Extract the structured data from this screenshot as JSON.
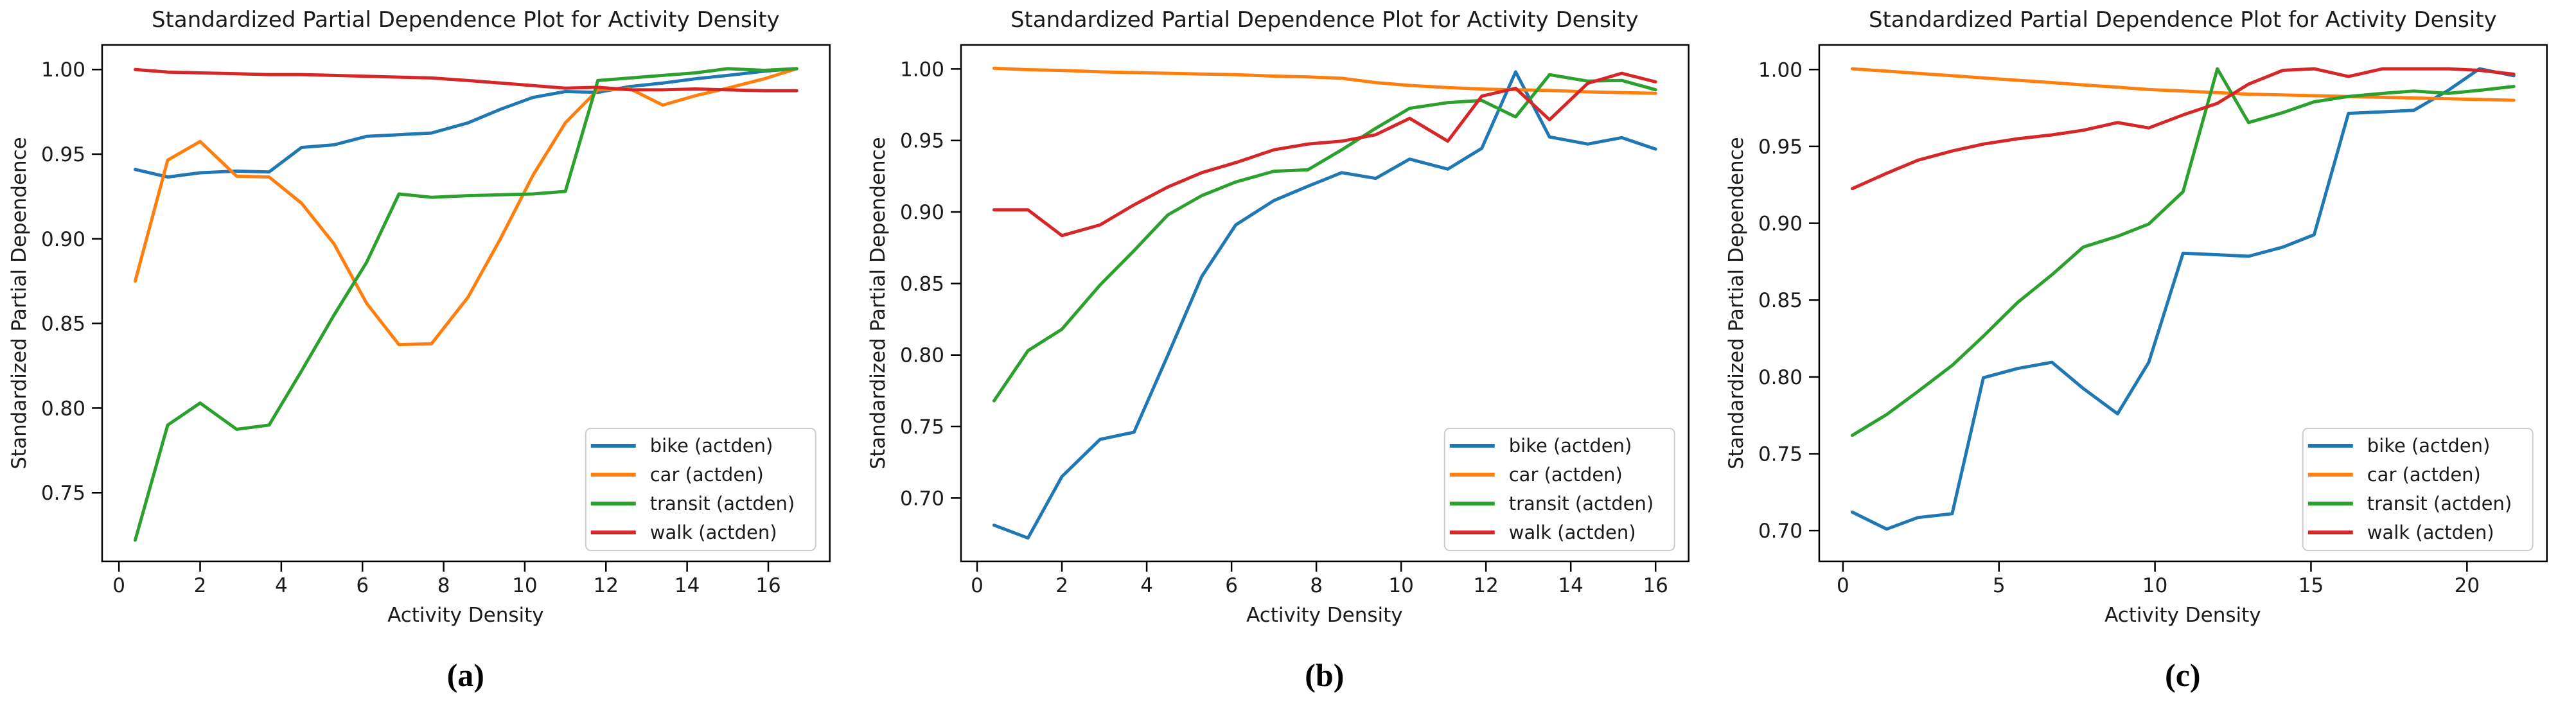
{
  "figure": {
    "background": "#ffffff",
    "text_color": "#1a1a1a",
    "spine_color": "#000000"
  },
  "chart_data": [
    {
      "type": "line",
      "caption": "(a)",
      "title": "Standardized Partial Dependence Plot for Activity Density",
      "xlabel": "Activity Density",
      "ylabel": "Standardized Partial Dependence",
      "xlim": [
        -0.415,
        17.515
      ],
      "ylim": [
        0.7095,
        1.0145
      ],
      "xticks": [
        0,
        2,
        4,
        6,
        8,
        10,
        12,
        14,
        16
      ],
      "yticks": [
        0.75,
        0.8,
        0.85,
        0.9,
        0.95,
        1.0
      ],
      "grid": false,
      "legend_position": "lower right",
      "x": [
        0.4,
        1.2,
        2.0,
        2.9,
        3.7,
        4.5,
        5.3,
        6.1,
        6.9,
        7.7,
        8.6,
        9.4,
        10.2,
        11.0,
        11.8,
        12.6,
        13.4,
        14.2,
        15.0,
        15.9,
        16.7
      ],
      "series": [
        {
          "key": "bike",
          "label": "bike (actden)",
          "color": "#1f77b4",
          "y": [
            0.941,
            0.9365,
            0.939,
            0.94,
            0.9395,
            0.954,
            0.9555,
            0.9605,
            0.9615,
            0.9625,
            0.9685,
            0.9765,
            0.9835,
            0.987,
            0.9865,
            0.99,
            0.992,
            0.9945,
            0.9965,
            0.999,
            1.0005
          ]
        },
        {
          "key": "car",
          "label": "car (actden)",
          "color": "#ff7f0e",
          "y": [
            0.875,
            0.9465,
            0.9575,
            0.937,
            0.9365,
            0.921,
            0.897,
            0.862,
            0.8375,
            0.838,
            0.8655,
            0.9,
            0.9375,
            0.9685,
            0.988,
            0.9885,
            0.979,
            0.9845,
            0.989,
            0.9945,
            1.0005
          ]
        },
        {
          "key": "transit",
          "label": "transit (actden)",
          "color": "#2ca02c",
          "y": [
            0.722,
            0.79,
            0.803,
            0.7875,
            0.79,
            0.822,
            0.855,
            0.886,
            0.9265,
            0.9245,
            0.9255,
            0.926,
            0.9265,
            0.928,
            0.9935,
            0.995,
            0.9965,
            0.998,
            1.0005,
            0.9995,
            1.0005
          ]
        },
        {
          "key": "walk",
          "label": "walk (actden)",
          "color": "#d62728",
          "y": [
            1.0,
            0.9985,
            0.998,
            0.9975,
            0.997,
            0.997,
            0.9965,
            0.996,
            0.9955,
            0.995,
            0.9935,
            0.992,
            0.9905,
            0.989,
            0.9895,
            0.988,
            0.988,
            0.9885,
            0.988,
            0.9875,
            0.9875
          ]
        }
      ]
    },
    {
      "type": "line",
      "caption": "(b)",
      "title": "Standardized Partial Dependence Plot for Activity Density",
      "xlabel": "Activity Density",
      "ylabel": "Standardized Partial Dependence",
      "xlim": [
        -0.38,
        16.78
      ],
      "ylim": [
        0.6557,
        1.0168
      ],
      "xticks": [
        0,
        2,
        4,
        6,
        8,
        10,
        12,
        14,
        16
      ],
      "yticks": [
        0.7,
        0.75,
        0.8,
        0.85,
        0.9,
        0.95,
        1.0
      ],
      "grid": false,
      "legend_position": "lower right",
      "x": [
        0.4,
        1.2,
        2.0,
        2.9,
        3.7,
        4.5,
        5.3,
        6.1,
        7.0,
        7.8,
        8.6,
        9.4,
        10.2,
        11.1,
        11.9,
        12.7,
        13.5,
        14.4,
        15.2,
        16.0
      ],
      "series": [
        {
          "key": "bike",
          "label": "bike (actden)",
          "color": "#1f77b4",
          "y": [
            0.681,
            0.672,
            0.715,
            0.741,
            0.746,
            0.8,
            0.855,
            0.891,
            0.908,
            0.918,
            0.9275,
            0.9235,
            0.937,
            0.93,
            0.9445,
            0.998,
            0.9525,
            0.9475,
            0.952,
            0.944
          ]
        },
        {
          "key": "car",
          "label": "car (actden)",
          "color": "#ff7f0e",
          "y": [
            1.0005,
            0.9995,
            0.999,
            0.998,
            0.9975,
            0.997,
            0.9965,
            0.996,
            0.995,
            0.9945,
            0.9935,
            0.9905,
            0.9885,
            0.987,
            0.986,
            0.9855,
            0.985,
            0.984,
            0.9835,
            0.983
          ]
        },
        {
          "key": "transit",
          "label": "transit (actden)",
          "color": "#2ca02c",
          "y": [
            0.768,
            0.803,
            0.818,
            0.849,
            0.873,
            0.898,
            0.9115,
            0.921,
            0.9285,
            0.9295,
            0.9435,
            0.9585,
            0.9725,
            0.9765,
            0.978,
            0.9665,
            0.996,
            0.9915,
            0.992,
            0.9855
          ]
        },
        {
          "key": "walk",
          "label": "walk (actden)",
          "color": "#d62728",
          "y": [
            0.9015,
            0.9015,
            0.8835,
            0.891,
            0.905,
            0.9175,
            0.9275,
            0.9345,
            0.9435,
            0.9475,
            0.9495,
            0.954,
            0.9655,
            0.9495,
            0.981,
            0.9865,
            0.9645,
            0.99,
            0.997,
            0.991
          ]
        }
      ]
    },
    {
      "type": "line",
      "caption": "(c)",
      "title": "Standardized Partial Dependence Plot for Activity Density",
      "xlabel": "Activity Density",
      "ylabel": "Standardized Partial Dependence",
      "xlim": [
        -0.76,
        22.56
      ],
      "ylim": [
        0.68,
        1.016
      ],
      "xticks": [
        0,
        5,
        10,
        15,
        20
      ],
      "yticks": [
        0.7,
        0.75,
        0.8,
        0.85,
        0.9,
        0.95,
        1.0
      ],
      "grid": false,
      "legend_position": "lower right",
      "x": [
        0.3,
        1.4,
        2.4,
        3.5,
        4.5,
        5.6,
        6.7,
        7.7,
        8.8,
        9.8,
        10.9,
        12.0,
        13.0,
        14.1,
        15.1,
        16.2,
        17.3,
        18.3,
        19.4,
        20.4,
        21.5
      ],
      "series": [
        {
          "key": "bike",
          "label": "bike (actden)",
          "color": "#1f77b4",
          "y": [
            0.712,
            0.701,
            0.7085,
            0.711,
            0.7995,
            0.8055,
            0.8095,
            0.7925,
            0.776,
            0.8095,
            0.8805,
            0.8795,
            0.8785,
            0.8845,
            0.8925,
            0.9715,
            0.9725,
            0.9735,
            0.9865,
            1.0005,
            0.996
          ]
        },
        {
          "key": "car",
          "label": "car (actden)",
          "color": "#ff7f0e",
          "y": [
            1.0005,
            0.999,
            0.9975,
            0.996,
            0.9945,
            0.993,
            0.9915,
            0.99,
            0.9885,
            0.987,
            0.986,
            0.985,
            0.984,
            0.9835,
            0.983,
            0.9825,
            0.982,
            0.9815,
            0.981,
            0.9805,
            0.98
          ]
        },
        {
          "key": "transit",
          "label": "transit (actden)",
          "color": "#2ca02c",
          "y": [
            0.762,
            0.7755,
            0.7905,
            0.8075,
            0.8265,
            0.8485,
            0.8665,
            0.8845,
            0.8915,
            0.8995,
            0.9205,
            1.0005,
            0.9655,
            0.972,
            0.979,
            0.9825,
            0.9845,
            0.986,
            0.9845,
            0.9865,
            0.989
          ]
        },
        {
          "key": "walk",
          "label": "walk (actden)",
          "color": "#d62728",
          "y": [
            0.9225,
            0.9325,
            0.941,
            0.947,
            0.9515,
            0.955,
            0.9575,
            0.9605,
            0.9655,
            0.962,
            0.9705,
            0.978,
            0.9905,
            0.9995,
            1.0005,
            0.9955,
            1.0005,
            1.0005,
            1.0005,
            0.9995,
            0.997
          ]
        }
      ]
    }
  ]
}
